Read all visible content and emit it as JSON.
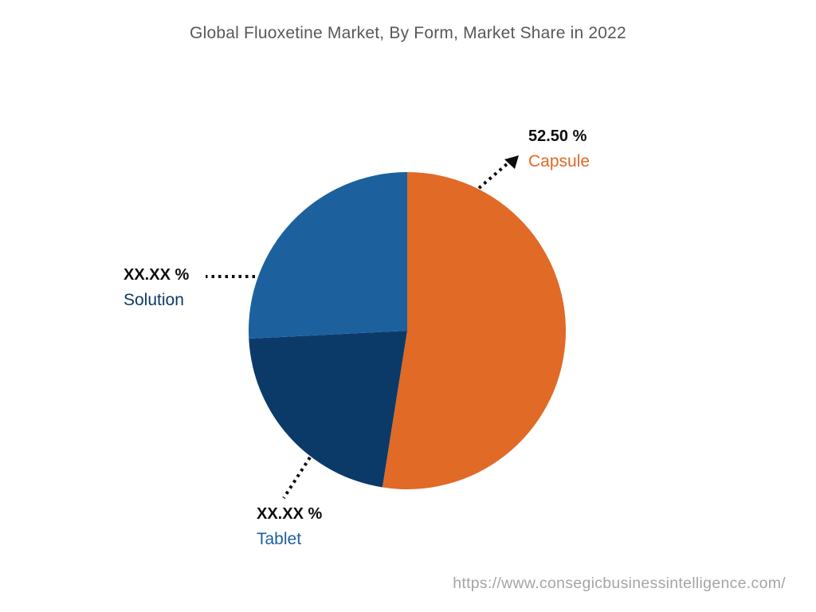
{
  "title": "Global Fluoxetine Market, By Form, Market Share in 2022",
  "source_url": "https://www.consegicbusinessintelligence.com/",
  "chart_data": {
    "type": "pie",
    "title": "Global Fluoxetine Market, By Form, Market Share in 2022",
    "unit": "%",
    "start_angle_deg": 0,
    "direction": "clockwise",
    "legend_position": "none",
    "slices": [
      {
        "name": "Capsule",
        "value": 52.5,
        "display_value": "52.50 %",
        "color": "#e06a26",
        "label_color": "#e06a26"
      },
      {
        "name": "Tablet",
        "value": 21.7,
        "display_value": "XX.XX %",
        "color": "#0b3a69",
        "label_color": "#1c619e"
      },
      {
        "name": "Solution",
        "value": 25.8,
        "display_value": "XX.XX %",
        "color": "#1c619e",
        "label_color": "#0d3a66"
      }
    ]
  }
}
